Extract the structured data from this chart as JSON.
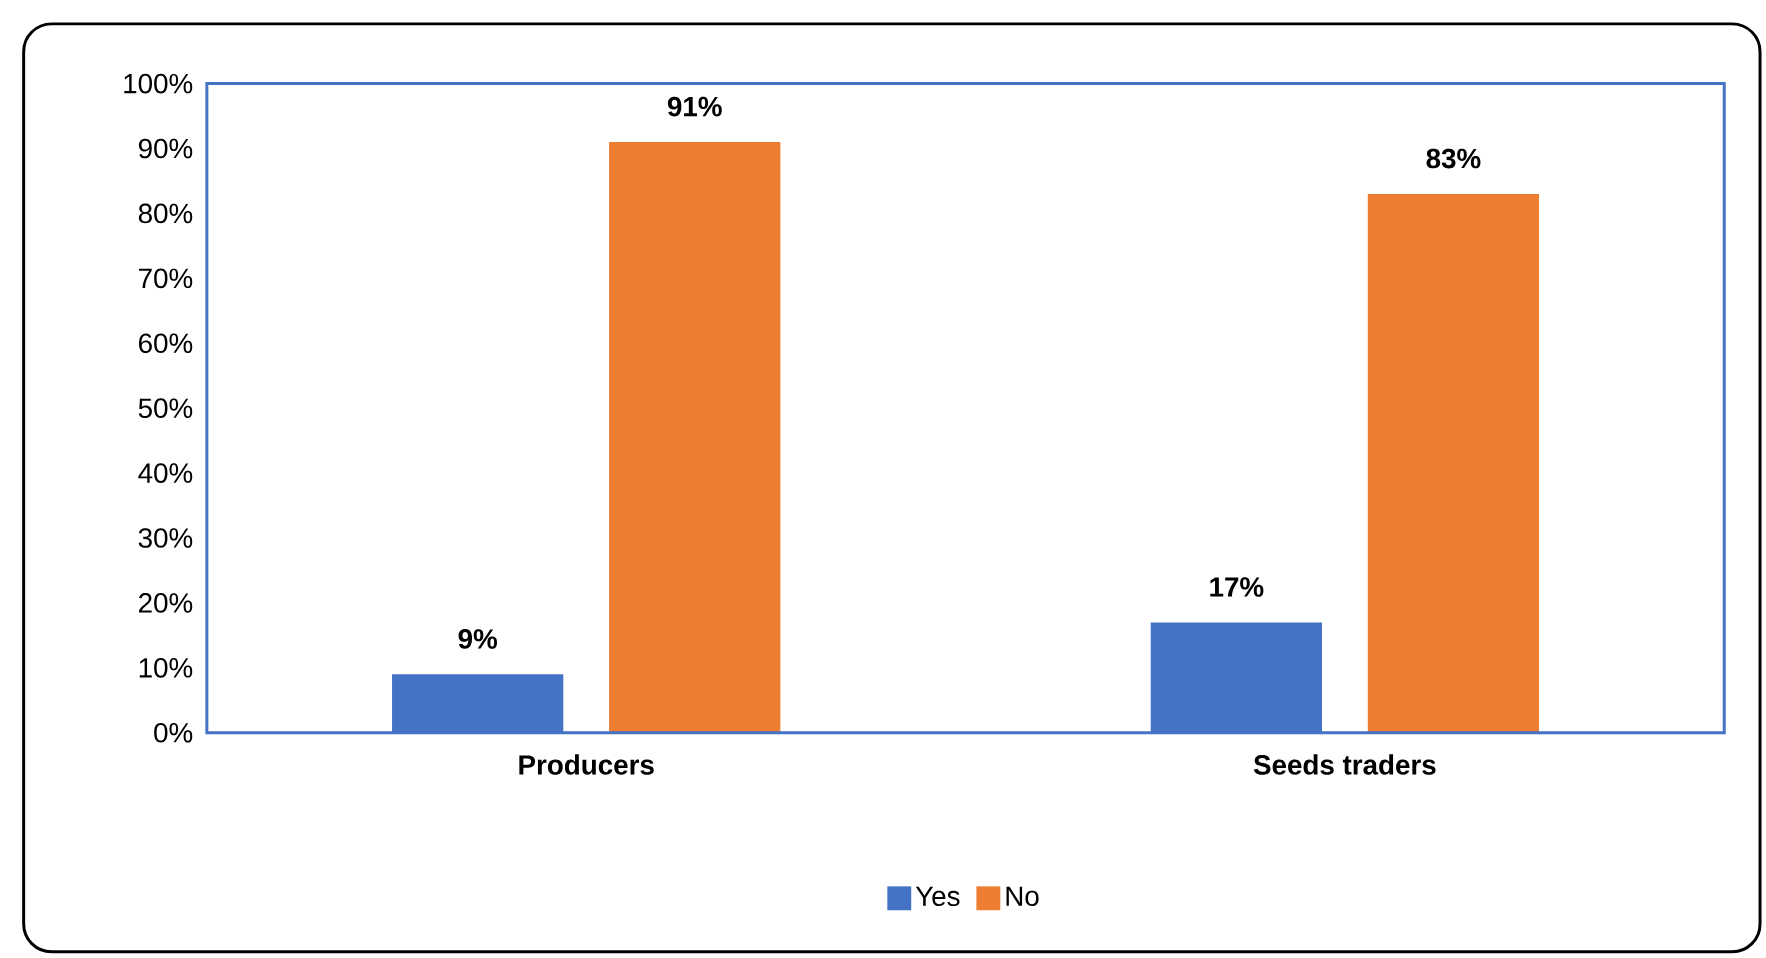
{
  "chart_data": {
    "type": "bar",
    "categories": [
      "Producers",
      "Seeds traders"
    ],
    "series": [
      {
        "name": "Yes",
        "color": "#4472c4",
        "values": [
          9,
          17
        ],
        "value_labels": [
          "9%",
          "17%"
        ]
      },
      {
        "name": "No",
        "color": "#ed7d31",
        "values": [
          91,
          83
        ],
        "value_labels": [
          "91%",
          "83%"
        ]
      }
    ],
    "ylim": [
      0,
      100
    ],
    "yticks": [
      {
        "value": 0,
        "label": "0%"
      },
      {
        "value": 10,
        "label": "10%"
      },
      {
        "value": 20,
        "label": "20%"
      },
      {
        "value": 30,
        "label": "30%"
      },
      {
        "value": 40,
        "label": "40%"
      },
      {
        "value": 50,
        "label": "50%"
      },
      {
        "value": 60,
        "label": "60%"
      },
      {
        "value": 70,
        "label": "70%"
      },
      {
        "value": 80,
        "label": "80%"
      },
      {
        "value": 90,
        "label": "90%"
      },
      {
        "value": 100,
        "label": "100%"
      }
    ],
    "legend": "bottom",
    "grid": false
  }
}
